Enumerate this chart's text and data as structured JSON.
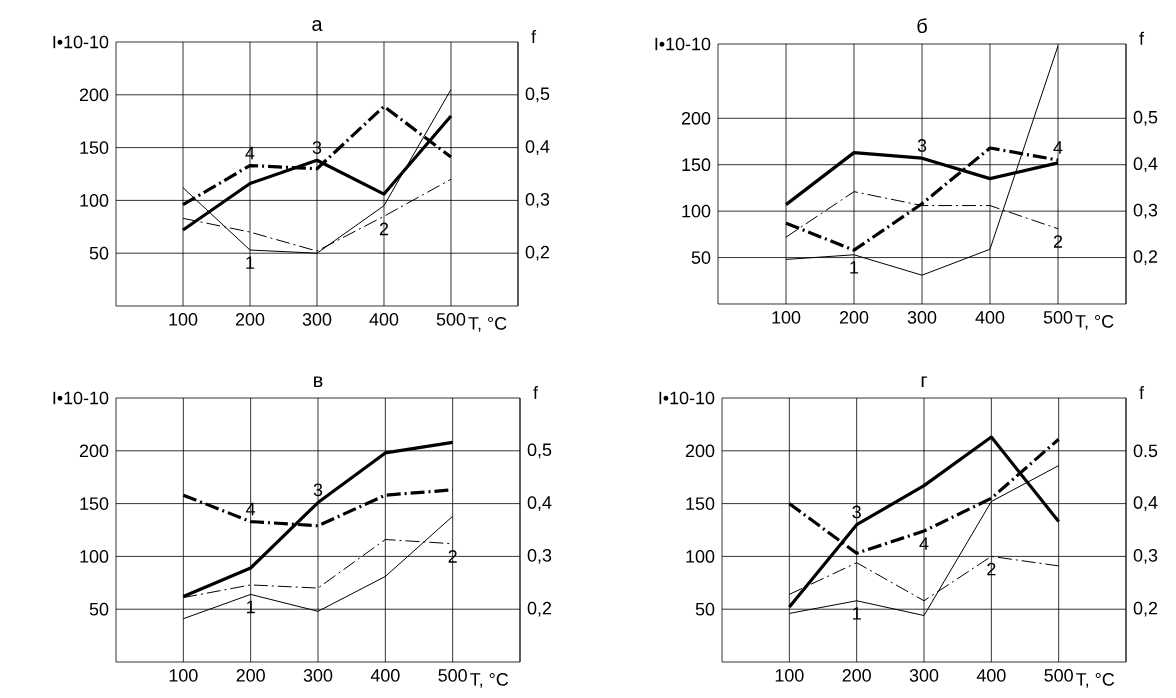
{
  "chart_data": [
    {
      "type": "line",
      "title": "а",
      "xlabel": "T, °C",
      "ylabel": "I•10-10",
      "y2label": "f",
      "x": [
        100,
        200,
        300,
        400,
        500
      ],
      "xlim": [
        0,
        600
      ],
      "xticks": [
        100,
        200,
        300,
        400,
        500
      ],
      "ylim": [
        0,
        250
      ],
      "yticks": [
        50,
        100,
        150,
        200
      ],
      "y2lim": [
        0.1,
        0.6
      ],
      "y2ticks": [
        {
          "value": 0.2,
          "label": "0,2"
        },
        {
          "value": 0.3,
          "label": "0,3"
        },
        {
          "value": 0.4,
          "label": "0,4"
        },
        {
          "value": 0.5,
          "label": "0,5"
        }
      ],
      "grid": true,
      "series": [
        {
          "name": "1",
          "color": "#000000",
          "line_style": "solid",
          "values": [
            112,
            53,
            50,
            95,
            205
          ]
        },
        {
          "name": "2",
          "color": "#000000",
          "line_style": "dashdot",
          "values": [
            83,
            70,
            52,
            85,
            120
          ]
        },
        {
          "name": "3",
          "color": "#000000",
          "line_style": "solid",
          "values": [
            72,
            116,
            138,
            106,
            180
          ]
        },
        {
          "name": "4",
          "color": "#000000",
          "line_style": "dashdot",
          "values": [
            96,
            133,
            130,
            189,
            141
          ]
        }
      ]
    },
    {
      "type": "line",
      "title": "б",
      "xlabel": "T, °C",
      "ylabel": "I•10-10",
      "y2label": "f",
      "x": [
        100,
        200,
        300,
        400,
        500
      ],
      "xlim": [
        0,
        600
      ],
      "xticks": [
        100,
        200,
        300,
        400,
        500
      ],
      "ylim": [
        0,
        280
      ],
      "yticks": [
        50,
        100,
        150,
        200
      ],
      "y2lim": [
        0.1,
        0.66
      ],
      "y2ticks": [
        {
          "value": 0.2,
          "label": "0,2"
        },
        {
          "value": 0.3,
          "label": "0,3"
        },
        {
          "value": 0.4,
          "label": "0,4"
        },
        {
          "value": 0.5,
          "label": "0,5"
        }
      ],
      "grid": true,
      "series": [
        {
          "name": "1",
          "color": "#000000",
          "line_style": "solid",
          "values": [
            48,
            53,
            31,
            59,
            278
          ]
        },
        {
          "name": "2",
          "color": "#000000",
          "line_style": "dashdot",
          "values": [
            72,
            121,
            106,
            106,
            81
          ]
        },
        {
          "name": "3",
          "color": "#000000",
          "line_style": "solid",
          "values": [
            107,
            163,
            157,
            135,
            152
          ]
        },
        {
          "name": "4",
          "color": "#000000",
          "line_style": "dashdot",
          "values": [
            87,
            58,
            108,
            168,
            155
          ]
        }
      ]
    },
    {
      "type": "line",
      "title": "в",
      "xlabel": "T, °C",
      "ylabel": "I•10-10",
      "y2label": "f",
      "x": [
        100,
        200,
        300,
        400,
        500
      ],
      "xlim": [
        0,
        600
      ],
      "xticks": [
        100,
        200,
        300,
        400,
        500
      ],
      "ylim": [
        0,
        250
      ],
      "yticks": [
        50,
        100,
        150,
        200
      ],
      "y2lim": [
        0.1,
        0.6
      ],
      "y2ticks": [
        {
          "value": 0.2,
          "label": "0,2"
        },
        {
          "value": 0.3,
          "label": "0,3"
        },
        {
          "value": 0.4,
          "label": "0,4"
        },
        {
          "value": 0.5,
          "label": "0,5"
        }
      ],
      "grid": true,
      "series": [
        {
          "name": "1",
          "color": "#000000",
          "line_style": "solid",
          "values": [
            41,
            64,
            48,
            81,
            138
          ]
        },
        {
          "name": "2",
          "color": "#000000",
          "line_style": "dashdot",
          "values": [
            61,
            73,
            70,
            116,
            112
          ]
        },
        {
          "name": "3",
          "color": "#000000",
          "line_style": "solid",
          "values": [
            62,
            89,
            151,
            198,
            208
          ]
        },
        {
          "name": "4",
          "color": "#000000",
          "line_style": "dashdot",
          "values": [
            158,
            133,
            129,
            158,
            163
          ]
        }
      ]
    },
    {
      "type": "line",
      "title": "г",
      "xlabel": "T, °C",
      "ylabel": "I•10-10",
      "y2label": "f",
      "x": [
        100,
        200,
        300,
        400,
        500
      ],
      "xlim": [
        0,
        600
      ],
      "xticks": [
        100,
        200,
        300,
        400,
        500
      ],
      "ylim": [
        0,
        250
      ],
      "yticks": [
        50,
        100,
        150,
        200
      ],
      "y2lim": [
        0.1,
        0.6
      ],
      "y2ticks": [
        {
          "value": 0.2,
          "label": "0,2"
        },
        {
          "value": 0.3,
          "label": "0,3"
        },
        {
          "value": 0.4,
          "label": "0,4"
        },
        {
          "value": 0.5,
          "label": "0.5"
        }
      ],
      "grid": true,
      "series": [
        {
          "name": "1",
          "color": "#000000",
          "line_style": "solid",
          "values": [
            46,
            58,
            44,
            152,
            186
          ]
        },
        {
          "name": "2",
          "color": "#000000",
          "line_style": "dashdot",
          "values": [
            64,
            94,
            58,
            100,
            91
          ]
        },
        {
          "name": "3",
          "color": "#000000",
          "line_style": "solid",
          "values": [
            52,
            130,
            167,
            213,
            133
          ]
        },
        {
          "name": "4",
          "color": "#000000",
          "line_style": "dashdot",
          "values": [
            150,
            103,
            124,
            155,
            211
          ]
        }
      ]
    }
  ]
}
